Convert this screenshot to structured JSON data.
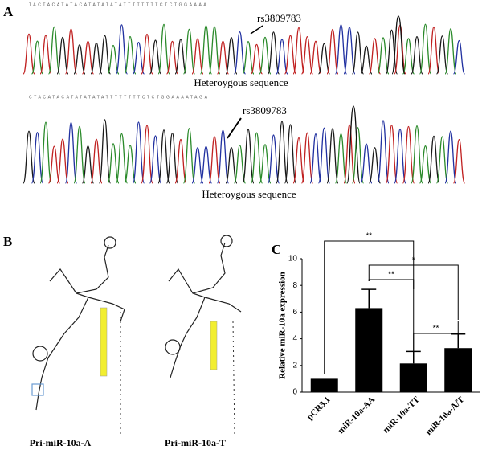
{
  "panel_a": {
    "label": "A",
    "top": {
      "sequence": "TACTACATATACATATATATATTTTTTTTCTCTGGAAAA",
      "snp": "rs3809783",
      "caption": "Heteroygous sequence"
    },
    "bottom": {
      "sequence": "CTACATACATATATATATTTTTTTTCTCTGGAAAATAGA",
      "snp": "rs3809783",
      "caption": "Heteroygous sequence"
    }
  },
  "panel_b": {
    "label": "B",
    "structures": [
      "Pri-miR-10a-A",
      "Pri-miR-10a-T"
    ]
  },
  "panel_c": {
    "label": "C"
  },
  "chart_data": {
    "type": "bar",
    "ylabel": "Relative miR-10a expression",
    "categories": [
      "pCR3.1",
      "miR-10a-AA",
      "miR-10a-TT",
      "miR-10a-A/T"
    ],
    "values": [
      1.0,
      6.3,
      2.15,
      3.3
    ],
    "errors": [
      0,
      1.4,
      0.9,
      1.05
    ],
    "color": "#000000",
    "ylim": [
      0,
      10
    ],
    "yticks": [
      0,
      2,
      4,
      6,
      8,
      10
    ],
    "annotations": [
      "**",
      "*",
      "**",
      "**"
    ]
  }
}
